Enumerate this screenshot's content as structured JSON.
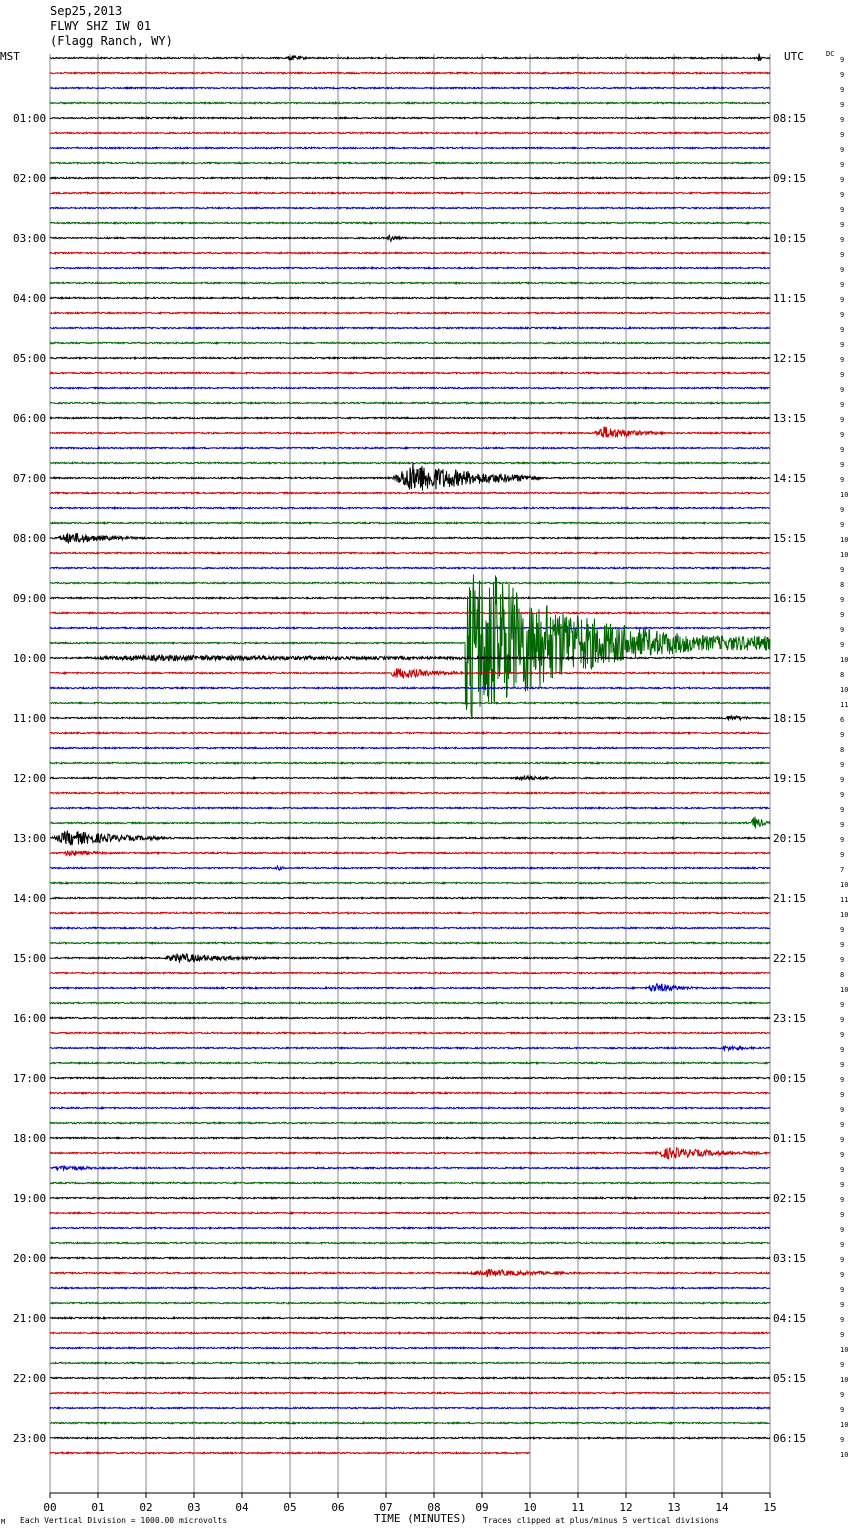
{
  "header": {
    "date": "Sep25,2013",
    "station": "FLWY SHZ IW 01",
    "location": "(Flagg Ranch, WY)"
  },
  "chart_data": {
    "type": "line",
    "left_axis_label": "MST",
    "right_axis_label": "UTC",
    "dc_label": "DC",
    "xlabel": "TIME (MINUTES)",
    "x_ticks": [
      "00",
      "01",
      "02",
      "03",
      "04",
      "05",
      "06",
      "07",
      "08",
      "09",
      "10",
      "11",
      "12",
      "13",
      "14",
      "15"
    ],
    "xlim": [
      0,
      15
    ],
    "left_hour_labels": [
      "01:00",
      "02:00",
      "03:00",
      "04:00",
      "05:00",
      "06:00",
      "07:00",
      "08:00",
      "09:00",
      "10:00",
      "11:00",
      "12:00",
      "13:00",
      "14:00",
      "15:00",
      "16:00",
      "17:00",
      "18:00",
      "19:00",
      "20:00",
      "21:00",
      "22:00",
      "23:00"
    ],
    "right_hour_labels": [
      "08:15",
      "09:15",
      "10:15",
      "11:15",
      "12:15",
      "13:15",
      "14:15",
      "15:15",
      "16:15",
      "17:15",
      "18:15",
      "19:15",
      "20:15",
      "21:15",
      "22:15",
      "23:15",
      "00:15",
      "01:15",
      "02:15",
      "03:15",
      "04:15",
      "05:15",
      "06:15"
    ],
    "trace_colors": [
      "#000000",
      "#cc0000",
      "#0000cc",
      "#006600"
    ],
    "trace_count": 94,
    "last_trace_end_minute": 10,
    "dc_offsets": [
      9,
      9,
      9,
      9,
      9,
      9,
      9,
      9,
      9,
      9,
      9,
      9,
      9,
      9,
      9,
      9,
      9,
      9,
      9,
      9,
      9,
      9,
      9,
      9,
      9,
      9,
      9,
      9,
      9,
      10,
      9,
      9,
      10,
      10,
      9,
      8,
      9,
      9,
      9,
      9,
      10,
      8,
      10,
      11,
      6,
      9,
      8,
      9,
      9,
      9,
      9,
      9,
      9,
      9,
      7,
      10,
      11,
      10,
      9,
      9,
      9,
      8,
      10,
      9,
      9,
      9,
      9,
      9,
      9,
      9,
      9,
      9,
      9,
      9,
      9,
      9,
      9,
      9,
      9,
      9,
      9,
      9,
      9,
      9,
      9,
      9,
      10,
      9,
      10,
      9,
      9,
      10,
      9,
      10
    ],
    "events": [
      {
        "trace": 0,
        "start": 4.9,
        "end": 5.6,
        "amp": 3
      },
      {
        "trace": 0,
        "start": 14.75,
        "end": 14.85,
        "amp": 6
      },
      {
        "trace": 12,
        "start": 7.0,
        "end": 7.5,
        "amp": 4
      },
      {
        "trace": 25,
        "start": 11.3,
        "end": 12.8,
        "amp": 7
      },
      {
        "trace": 28,
        "start": 7.1,
        "end": 10.2,
        "amp": 16
      },
      {
        "trace": 32,
        "start": 0.1,
        "end": 2.0,
        "amp": 6
      },
      {
        "trace": 39,
        "start": 8.65,
        "end": 15.0,
        "amp": 75
      },
      {
        "trace": 40,
        "start": 0.0,
        "end": 15.0,
        "amp": 3
      },
      {
        "trace": 41,
        "start": 7.0,
        "end": 8.8,
        "amp": 6
      },
      {
        "trace": 44,
        "start": 14.0,
        "end": 15.0,
        "amp": 3
      },
      {
        "trace": 48,
        "start": 9.6,
        "end": 11.0,
        "amp": 3
      },
      {
        "trace": 51,
        "start": 14.6,
        "end": 15.0,
        "amp": 8
      },
      {
        "trace": 52,
        "start": 0.0,
        "end": 2.6,
        "amp": 8
      },
      {
        "trace": 53,
        "start": 0.2,
        "end": 1.6,
        "amp": 3
      },
      {
        "trace": 54,
        "start": 4.7,
        "end": 5.0,
        "amp": 3
      },
      {
        "trace": 60,
        "start": 2.3,
        "end": 4.8,
        "amp": 5
      },
      {
        "trace": 62,
        "start": 12.4,
        "end": 13.7,
        "amp": 5
      },
      {
        "trace": 66,
        "start": 13.9,
        "end": 15.0,
        "amp": 3
      },
      {
        "trace": 73,
        "start": 12.5,
        "end": 15.0,
        "amp": 6
      },
      {
        "trace": 74,
        "start": 0.0,
        "end": 1.5,
        "amp": 3
      },
      {
        "trace": 81,
        "start": 8.6,
        "end": 11.5,
        "amp": 4
      }
    ]
  },
  "footer": {
    "scale_note": "Each Vertical Division = 1000.00 microvolts",
    "clip_note": "Traces clipped at plus/minus 5 vertical divisions",
    "corner_mark": "M"
  }
}
